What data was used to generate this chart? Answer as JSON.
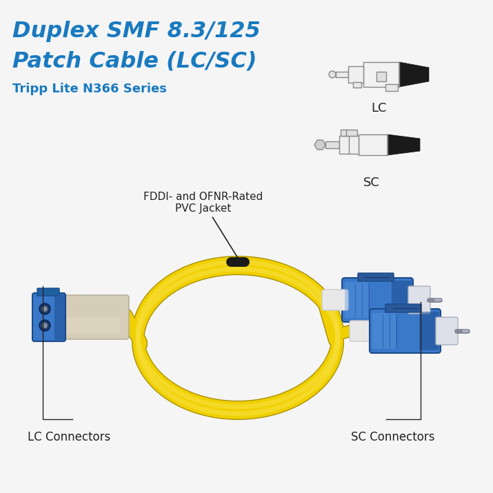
{
  "title_line1": "Duplex SMF 8.3/125",
  "title_line2": "Patch Cable (LC/SC)",
  "subtitle": "Tripp Lite N366 Series",
  "title_color": "#1a7abf",
  "subtitle_color": "#1a7abf",
  "label_lc_conn": "LC Connectors",
  "label_sc_conn": "SC Connectors",
  "label_jacket": "FDDI- and OFNR-Rated\nPVC Jacket",
  "label_lc": "LC",
  "label_sc": "SC",
  "bg_color": "#f5f5f5",
  "cable_yellow": "#f0d000",
  "cable_yellow_hi": "#f8e040",
  "cable_yellow_sh": "#a89000",
  "connector_blue": "#3a78c9",
  "connector_blue_dark": "#1a4a8a",
  "connector_blue_light": "#5a9ae0",
  "connector_cream": "#d8d0b8",
  "connector_cream_dark": "#b0a888",
  "text_color": "#222222",
  "line_color": "#333333",
  "diag_color": "#888888"
}
